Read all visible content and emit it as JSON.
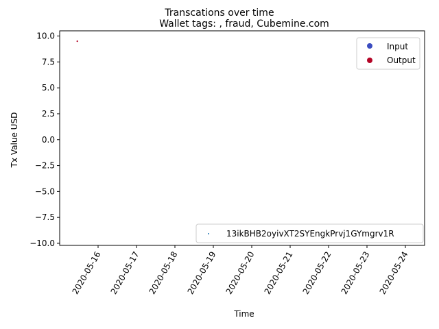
{
  "chart_data": {
    "type": "scatter",
    "suptitle": "Transcations over time",
    "title": "Wallet tags: , fraud, Cubemine.com",
    "xlabel": "Time",
    "ylabel": "Tx Value USD",
    "xlim": [
      "2020-05-15",
      "2020-05-24 12:00"
    ],
    "ylim": [
      -10.2,
      10.5
    ],
    "x_ticks": [
      "2020-05-16",
      "2020-05-17",
      "2020-05-18",
      "2020-05-19",
      "2020-05-20",
      "2020-05-21",
      "2020-05-22",
      "2020-05-23",
      "2020-05-24"
    ],
    "y_ticks": [
      "10.0",
      "7.5",
      "5.0",
      "2.5",
      "0.0",
      "−2.5",
      "−5.0",
      "−7.5",
      "−10.0"
    ],
    "grid": false,
    "series": [
      {
        "type": "Output",
        "color": "#b40426",
        "points": [
          {
            "x": "2020-05-15 11:00",
            "y": 9.5
          }
        ]
      }
    ],
    "legend_type": {
      "placement": "top-right",
      "entries": [
        {
          "label": "Input",
          "color": "#3b4cc0"
        },
        {
          "label": "Output",
          "color": "#b40426"
        }
      ]
    },
    "legend_wallet": {
      "placement": "bottom-right",
      "entries": [
        {
          "label": "13ikBHB2oyivXT2SYEngkPrvj1GYmgrv1R",
          "color": "#1f77b4"
        }
      ]
    }
  }
}
